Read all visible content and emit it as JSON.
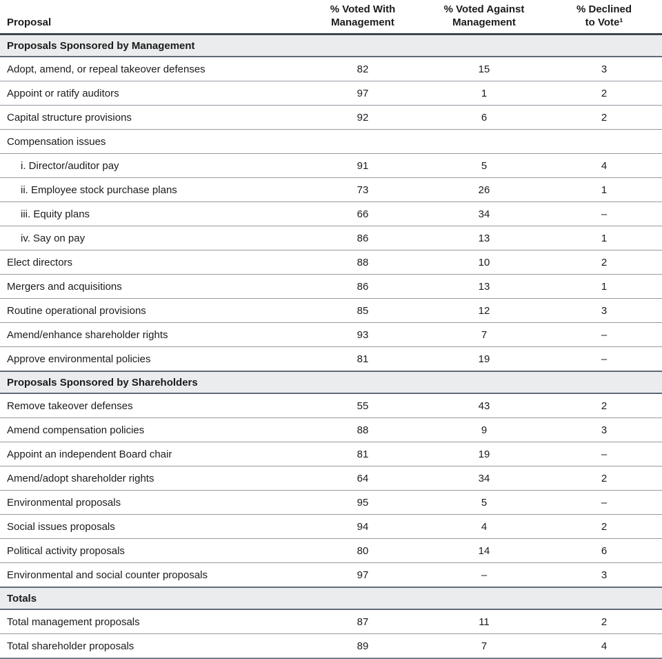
{
  "colors": {
    "text": "#1b1b1b",
    "section_background": "#ebeced",
    "section_border": "#5f6b76",
    "header_border": "#3e464e",
    "row_border": "#949ba2",
    "bottom_border": "#76808a"
  },
  "table": {
    "columns": [
      "Proposal",
      "% Voted With\nManagement",
      "% Voted Against\nManagement",
      "% Declined\nto Vote¹"
    ],
    "sections": [
      {
        "title": "Proposals Sponsored by Management",
        "rows": [
          {
            "label": "Adopt, amend, or repeal takeover defenses",
            "with": "82",
            "against": "15",
            "declined": "3",
            "indent": false
          },
          {
            "label": "Appoint or ratify auditors",
            "with": "97",
            "against": "1",
            "declined": "2",
            "indent": false
          },
          {
            "label": "Capital structure provisions",
            "with": "92",
            "against": "6",
            "declined": "2",
            "indent": false
          },
          {
            "label": "Compensation issues",
            "with": "",
            "against": "",
            "declined": "",
            "indent": false
          },
          {
            "label": "i. Director/auditor pay",
            "with": "91",
            "against": "5",
            "declined": "4",
            "indent": true
          },
          {
            "label": "ii. Employee stock purchase plans",
            "with": "73",
            "against": "26",
            "declined": "1",
            "indent": true
          },
          {
            "label": "iii. Equity plans",
            "with": "66",
            "against": "34",
            "declined": "–",
            "indent": true
          },
          {
            "label": "iv. Say on pay",
            "with": "86",
            "against": "13",
            "declined": "1",
            "indent": true
          },
          {
            "label": "Elect directors",
            "with": "88",
            "against": "10",
            "declined": "2",
            "indent": false
          },
          {
            "label": "Mergers and acquisitions",
            "with": "86",
            "against": "13",
            "declined": "1",
            "indent": false
          },
          {
            "label": "Routine operational provisions",
            "with": "85",
            "against": "12",
            "declined": "3",
            "indent": false
          },
          {
            "label": "Amend/enhance shareholder rights",
            "with": "93",
            "against": "7",
            "declined": "–",
            "indent": false
          },
          {
            "label": "Approve environmental policies",
            "with": "81",
            "against": "19",
            "declined": "–",
            "indent": false
          }
        ]
      },
      {
        "title": "Proposals Sponsored by Shareholders",
        "rows": [
          {
            "label": "Remove takeover defenses",
            "with": "55",
            "against": "43",
            "declined": "2",
            "indent": false
          },
          {
            "label": "Amend compensation policies",
            "with": "88",
            "against": "9",
            "declined": "3",
            "indent": false
          },
          {
            "label": "Appoint an independent Board chair",
            "with": "81",
            "against": "19",
            "declined": "–",
            "indent": false
          },
          {
            "label": "Amend/adopt shareholder rights",
            "with": "64",
            "against": "34",
            "declined": "2",
            "indent": false
          },
          {
            "label": "Environmental proposals",
            "with": "95",
            "against": "5",
            "declined": "–",
            "indent": false
          },
          {
            "label": "Social issues proposals",
            "with": "94",
            "against": "4",
            "declined": "2",
            "indent": false
          },
          {
            "label": "Political activity proposals",
            "with": "80",
            "against": "14",
            "declined": "6",
            "indent": false
          },
          {
            "label": "Environmental and social counter proposals",
            "with": "97",
            "against": "–",
            "declined": "3",
            "indent": false
          }
        ]
      },
      {
        "title": "Totals",
        "rows": [
          {
            "label": "Total management proposals",
            "with": "87",
            "against": "11",
            "declined": "2",
            "indent": false
          },
          {
            "label": "Total shareholder proposals",
            "with": "89",
            "against": "7",
            "declined": "4",
            "indent": false
          }
        ]
      }
    ]
  }
}
